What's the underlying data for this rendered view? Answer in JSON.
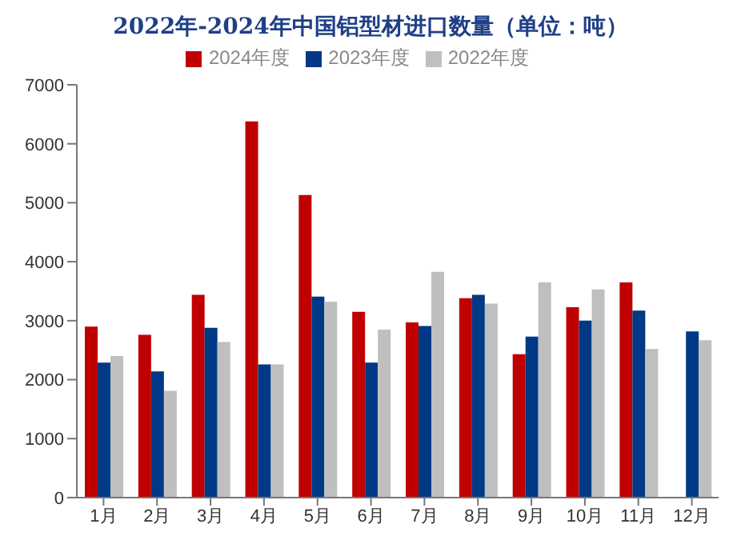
{
  "chart_data": {
    "type": "bar",
    "title": "2022年-2024年中国铝型材进口数量（单位：吨）",
    "categories": [
      "1月",
      "2月",
      "3月",
      "4月",
      "5月",
      "6月",
      "7月",
      "8月",
      "9月",
      "10月",
      "11月",
      "12月"
    ],
    "series": [
      {
        "name": "2024年度",
        "color": "#c00000",
        "values": [
          2900,
          2760,
          3440,
          6380,
          5130,
          3150,
          2970,
          3380,
          2430,
          3230,
          3650,
          null
        ]
      },
      {
        "name": "2023年度",
        "color": "#003986",
        "values": [
          2290,
          2140,
          2880,
          2260,
          3410,
          2290,
          2910,
          3440,
          2730,
          3000,
          3170,
          2820
        ]
      },
      {
        "name": "2022年度",
        "color": "#bfbfbf",
        "values": [
          2400,
          1810,
          2640,
          2260,
          3320,
          2850,
          3830,
          3290,
          3650,
          3530,
          2520,
          2670
        ]
      }
    ],
    "ylim": [
      0,
      7000
    ],
    "yticks": [
      0,
      1000,
      2000,
      3000,
      4000,
      5000,
      6000,
      7000
    ],
    "grid": false,
    "legend": "top"
  }
}
